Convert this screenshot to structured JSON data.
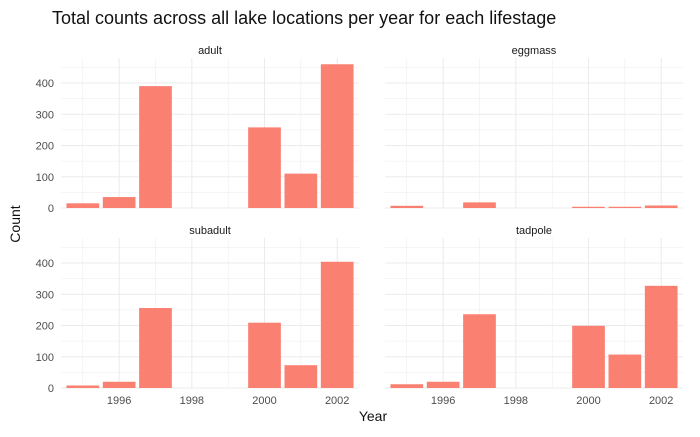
{
  "chart_data": {
    "type": "bar",
    "title": "Total counts across all lake locations per year for each lifestage",
    "xlabel": "Year",
    "ylabel": "Count",
    "bar_color": "#FA8072",
    "grid_color": "#EBEBEB",
    "grid": true,
    "xlim": [
      1994.4,
      2002.6
    ],
    "ylim": [
      0,
      480
    ],
    "x_ticks": [
      "1996",
      "1998",
      "2000",
      "2002"
    ],
    "y_ticks": [
      "0",
      "100",
      "200",
      "300",
      "400"
    ],
    "facets": [
      {
        "name": "adult",
        "years": [
          1995,
          1996,
          1997,
          2000,
          2001,
          2002
        ],
        "values": [
          15,
          35,
          390,
          258,
          110,
          460
        ]
      },
      {
        "name": "eggmass",
        "years": [
          1995,
          1997,
          2000,
          2001,
          2002
        ],
        "values": [
          7,
          18,
          4,
          4,
          8
        ]
      },
      {
        "name": "subadult",
        "years": [
          1995,
          1996,
          1997,
          2000,
          2001,
          2002
        ],
        "values": [
          8,
          20,
          256,
          209,
          73,
          404
        ]
      },
      {
        "name": "tadpole",
        "years": [
          1995,
          1996,
          1997,
          2000,
          2001,
          2002
        ],
        "values": [
          12,
          20,
          236,
          199,
          107,
          327
        ]
      }
    ]
  }
}
